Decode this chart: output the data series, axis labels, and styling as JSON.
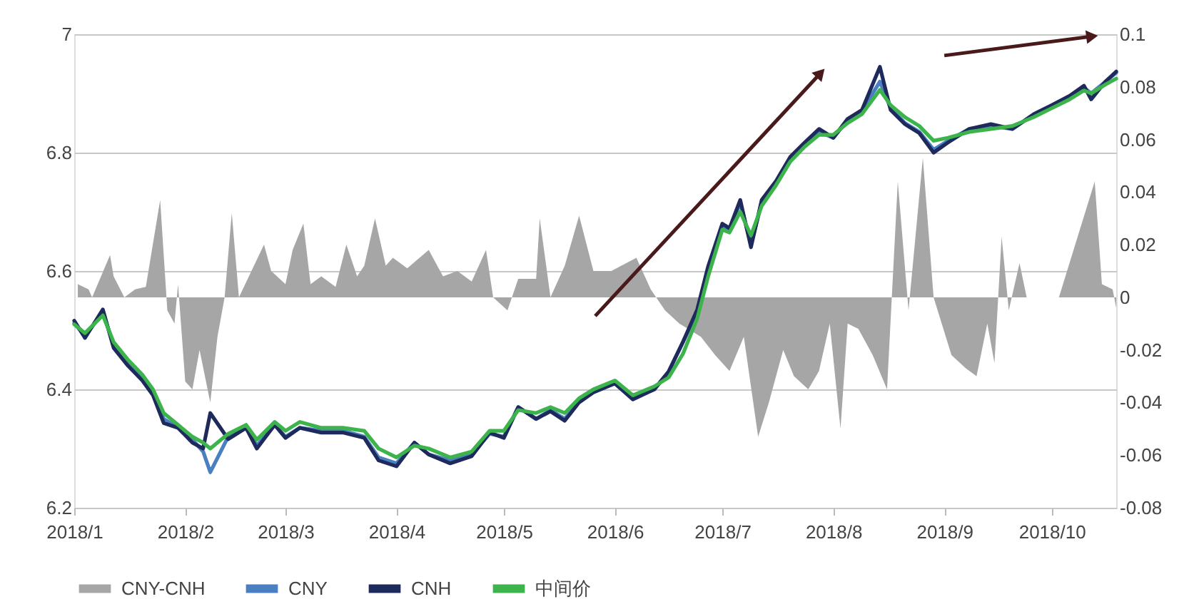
{
  "chart_data": {
    "type": "line",
    "x": [
      "2018-01-01",
      "2018-01-04",
      "2018-01-09",
      "2018-01-12",
      "2018-01-16",
      "2018-01-20",
      "2018-01-23",
      "2018-01-26",
      "2018-01-30",
      "2018-02-03",
      "2018-02-06",
      "2018-02-08",
      "2018-02-13",
      "2018-02-18",
      "2018-02-21",
      "2018-02-26",
      "2018-03-01",
      "2018-03-05",
      "2018-03-11",
      "2018-03-17",
      "2018-03-23",
      "2018-03-27",
      "2018-04-01",
      "2018-04-06",
      "2018-04-10",
      "2018-04-16",
      "2018-04-22",
      "2018-04-27",
      "2018-05-01",
      "2018-05-05",
      "2018-05-10",
      "2018-05-14",
      "2018-05-18",
      "2018-05-22",
      "2018-05-26",
      "2018-06-01",
      "2018-06-06",
      "2018-06-12",
      "2018-06-16",
      "2018-06-20",
      "2018-06-24",
      "2018-06-27",
      "2018-07-01",
      "2018-07-03",
      "2018-07-06",
      "2018-07-09",
      "2018-07-12",
      "2018-07-16",
      "2018-07-20",
      "2018-07-24",
      "2018-07-28",
      "2018-08-01",
      "2018-08-05",
      "2018-08-09",
      "2018-08-14",
      "2018-08-17",
      "2018-08-21",
      "2018-08-25",
      "2018-08-29",
      "2018-09-02",
      "2018-09-08",
      "2018-09-14",
      "2018-09-20",
      "2018-09-26",
      "2018-10-01",
      "2018-10-06",
      "2018-10-10",
      "2018-10-12",
      "2018-10-16",
      "2018-10-19"
    ],
    "series": [
      {
        "name": "CNY-CNH",
        "type": "area",
        "axis": "y2",
        "color": "#a6a6a6",
        "x": [
          "2018-01-02",
          "2018-01-05",
          "2018-01-06",
          "2018-01-11",
          "2018-01-12",
          "2018-01-15",
          "2018-01-18",
          "2018-01-21",
          "2018-01-25",
          "2018-01-27",
          "2018-01-29",
          "2018-01-30",
          "2018-02-01",
          "2018-02-03",
          "2018-02-05",
          "2018-02-08",
          "2018-02-10",
          "2018-02-12",
          "2018-02-14",
          "2018-02-16",
          "2018-02-23",
          "2018-02-25",
          "2018-03-01",
          "2018-03-03",
          "2018-03-06",
          "2018-03-08",
          "2018-03-11",
          "2018-03-15",
          "2018-03-18",
          "2018-03-21",
          "2018-03-23",
          "2018-03-26",
          "2018-03-29",
          "2018-03-31",
          "2018-04-04",
          "2018-04-10",
          "2018-04-14",
          "2018-04-18",
          "2018-04-22",
          "2018-04-26",
          "2018-04-28",
          "2018-05-02",
          "2018-05-05",
          "2018-05-10",
          "2018-05-11",
          "2018-05-14",
          "2018-05-18",
          "2018-05-22",
          "2018-05-26",
          "2018-05-31",
          "2018-06-07",
          "2018-06-11",
          "2018-06-15",
          "2018-06-19",
          "2018-06-25",
          "2018-06-29",
          "2018-07-03",
          "2018-07-07",
          "2018-07-11",
          "2018-07-14",
          "2018-07-18",
          "2018-07-21",
          "2018-07-25",
          "2018-07-28",
          "2018-07-31",
          "2018-08-03",
          "2018-08-05",
          "2018-08-08",
          "2018-08-12",
          "2018-08-16",
          "2018-08-19",
          "2018-08-22",
          "2018-08-26",
          "2018-08-29",
          "2018-09-03",
          "2018-09-07",
          "2018-09-10",
          "2018-09-13",
          "2018-09-15",
          "2018-09-17",
          "2018-09-19",
          "2018-09-22",
          "2018-09-24",
          "2018-10-03",
          "2018-10-13",
          "2018-10-15",
          "2018-10-18",
          "2018-10-19"
        ],
        "values": [
          0.005,
          0.003,
          0,
          0.016,
          0.008,
          0,
          0.003,
          0.004,
          0.037,
          -0.005,
          -0.01,
          0.005,
          -0.032,
          -0.035,
          -0.02,
          -0.04,
          -0.015,
          0,
          0.032,
          0,
          0.02,
          0.01,
          0.005,
          0.018,
          0.028,
          0.005,
          0.008,
          0.004,
          0.02,
          0.008,
          0.012,
          0.03,
          0.012,
          0.015,
          0.011,
          0.018,
          0.008,
          0.01,
          0.006,
          0.018,
          0,
          -0.005,
          0.007,
          0.007,
          0.03,
          0,
          0.012,
          0.031,
          0.01,
          0.01,
          0.015,
          0.003,
          -0.005,
          -0.01,
          -0.015,
          -0.022,
          -0.028,
          -0.015,
          -0.053,
          -0.04,
          -0.02,
          -0.03,
          -0.035,
          -0.028,
          -0.01,
          -0.05,
          -0.01,
          -0.012,
          -0.022,
          -0.035,
          0.044,
          -0.005,
          0.053,
          0,
          -0.022,
          -0.027,
          -0.03,
          -0.01,
          -0.025,
          0.023,
          -0.005,
          0.013,
          0,
          0,
          0.044,
          0.005,
          0.003,
          -0.004
        ]
      },
      {
        "name": "CNY",
        "color": "#4a7fc1",
        "values": [
          6.512,
          6.49,
          6.53,
          6.475,
          6.445,
          6.42,
          6.395,
          6.35,
          6.335,
          6.315,
          6.295,
          6.26,
          6.32,
          6.335,
          6.305,
          6.34,
          6.32,
          6.335,
          6.33,
          6.33,
          6.32,
          6.285,
          6.275,
          6.31,
          6.29,
          6.28,
          6.29,
          6.325,
          6.32,
          6.37,
          6.35,
          6.365,
          6.35,
          6.38,
          6.395,
          6.41,
          6.385,
          6.4,
          6.43,
          6.48,
          6.53,
          6.6,
          6.675,
          6.67,
          6.715,
          6.645,
          6.715,
          6.75,
          6.79,
          6.815,
          6.835,
          6.825,
          6.855,
          6.87,
          6.92,
          6.875,
          6.85,
          6.835,
          6.805,
          6.82,
          6.84,
          6.845,
          6.84,
          6.865,
          6.88,
          6.895,
          6.91,
          6.9,
          6.92,
          6.935
        ]
      },
      {
        "name": "CNH",
        "color": "#1f2a5c",
        "values": [
          6.516,
          6.487,
          6.535,
          6.47,
          6.44,
          6.415,
          6.39,
          6.343,
          6.335,
          6.31,
          6.3,
          6.36,
          6.316,
          6.335,
          6.3,
          6.34,
          6.318,
          6.335,
          6.327,
          6.327,
          6.318,
          6.28,
          6.27,
          6.31,
          6.29,
          6.275,
          6.287,
          6.327,
          6.318,
          6.37,
          6.35,
          6.363,
          6.347,
          6.378,
          6.395,
          6.41,
          6.383,
          6.4,
          6.43,
          6.48,
          6.535,
          6.607,
          6.68,
          6.672,
          6.72,
          6.64,
          6.72,
          6.752,
          6.793,
          6.817,
          6.84,
          6.825,
          6.857,
          6.872,
          6.945,
          6.872,
          6.848,
          6.833,
          6.8,
          6.817,
          6.84,
          6.848,
          6.84,
          6.865,
          6.88,
          6.896,
          6.913,
          6.89,
          6.92,
          6.937
        ]
      },
      {
        "name": "中间价",
        "color": "#3cb44b",
        "values": [
          6.51,
          6.495,
          6.525,
          6.48,
          6.45,
          6.425,
          6.4,
          6.36,
          6.34,
          6.32,
          6.31,
          6.3,
          6.325,
          6.34,
          6.315,
          6.345,
          6.33,
          6.345,
          6.335,
          6.335,
          6.33,
          6.3,
          6.285,
          6.305,
          6.3,
          6.285,
          6.295,
          6.33,
          6.33,
          6.365,
          6.36,
          6.37,
          6.36,
          6.385,
          6.4,
          6.415,
          6.39,
          6.405,
          6.42,
          6.46,
          6.52,
          6.59,
          6.67,
          6.665,
          6.7,
          6.66,
          6.71,
          6.745,
          6.785,
          6.81,
          6.83,
          6.83,
          6.85,
          6.865,
          6.906,
          6.88,
          6.86,
          6.845,
          6.82,
          6.825,
          6.835,
          6.84,
          6.845,
          6.86,
          6.875,
          6.89,
          6.905,
          6.9,
          6.915,
          6.925
        ]
      }
    ],
    "xlim": [
      "2018-01-01",
      "2018-10-19"
    ],
    "xticks": [
      {
        "value": "2018-01-01",
        "label": "2018/1"
      },
      {
        "value": "2018-02-01",
        "label": "2018/2"
      },
      {
        "value": "2018-03-01",
        "label": "2018/3"
      },
      {
        "value": "2018-04-01",
        "label": "2018/4"
      },
      {
        "value": "2018-05-01",
        "label": "2018/5"
      },
      {
        "value": "2018-06-01",
        "label": "2018/6"
      },
      {
        "value": "2018-07-01",
        "label": "2018/7"
      },
      {
        "value": "2018-08-01",
        "label": "2018/8"
      },
      {
        "value": "2018-09-01",
        "label": "2018/9"
      },
      {
        "value": "2018-10-01",
        "label": "2018/10"
      }
    ],
    "ylim": [
      6.2,
      7
    ],
    "yticks": [
      6.2,
      6.4,
      6.6,
      6.8,
      7
    ],
    "y2lim": [
      -0.08,
      0.1
    ],
    "y2ticks": [
      -0.08,
      -0.06,
      -0.04,
      -0.02,
      0,
      0.02,
      0.04,
      0.06,
      0.08,
      0.1
    ],
    "grid": "y",
    "legend": "bottom",
    "line_style": "solid",
    "marker": "none"
  }
}
